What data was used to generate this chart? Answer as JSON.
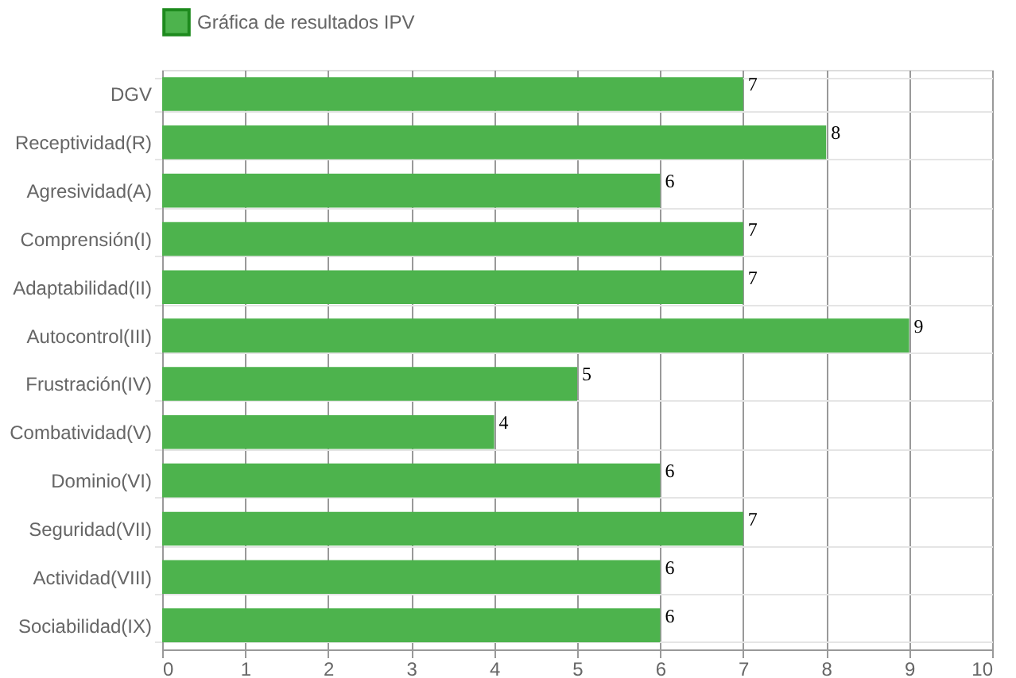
{
  "chart_data": {
    "type": "bar",
    "orientation": "horizontal",
    "categories": [
      "DGV",
      "Receptividad(R)",
      "Agresividad(A)",
      "Comprensión(I)",
      "Adaptabilidad(II)",
      "Autocontrol(III)",
      "Frustración(IV)",
      "Combatividad(V)",
      "Dominio(VI)",
      "Seguridad(VII)",
      "Actividad(VIII)",
      "Sociabilidad(IX)"
    ],
    "series": [
      {
        "name": "Gráfica de resultados IPV",
        "color": "#4db34d",
        "values": [
          7,
          8,
          6,
          7,
          7,
          9,
          5,
          4,
          6,
          7,
          6,
          6
        ]
      }
    ],
    "xlim": [
      0,
      10
    ],
    "xticks": [
      0,
      1,
      2,
      3,
      4,
      5,
      6,
      7,
      8,
      9,
      10
    ],
    "grid": true,
    "legend": "top",
    "data_labels": true
  }
}
